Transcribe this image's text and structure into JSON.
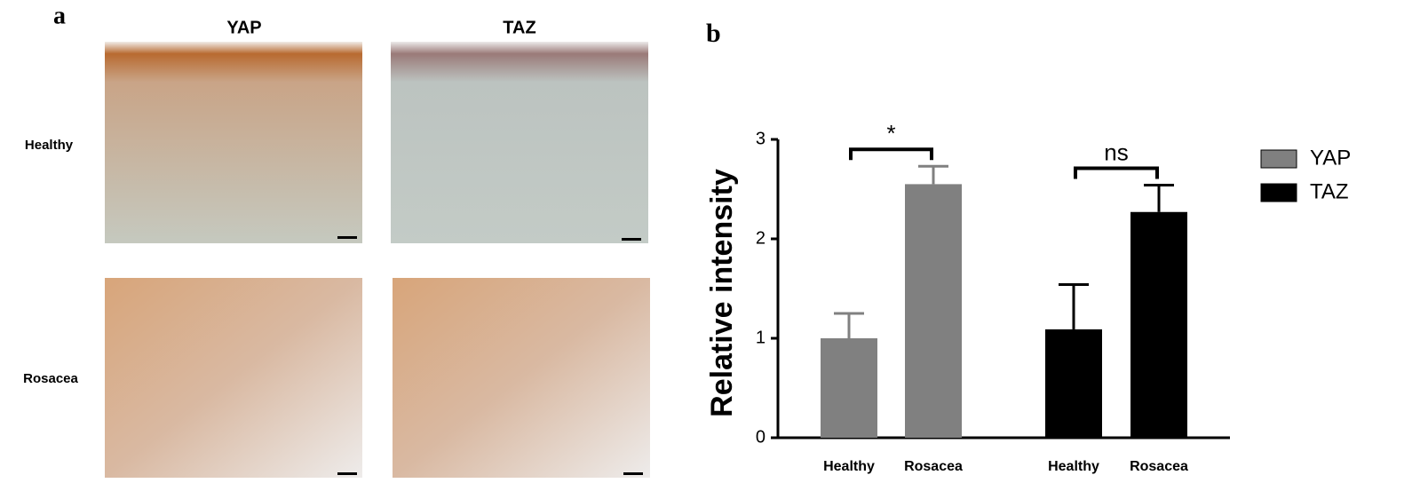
{
  "panel_a": {
    "label": "a",
    "columns": [
      "YAP",
      "TAZ"
    ],
    "rows": [
      "Healthy",
      "Rosacea"
    ]
  },
  "chart_data": {
    "type": "bar",
    "label": "b",
    "ylabel": "Relative intensity",
    "categories": [
      "Healthy",
      "Rosacea",
      "Healthy",
      "Rosacea"
    ],
    "series": [
      {
        "name": "YAP",
        "color": "#808080",
        "values": [
          1.0,
          2.55,
          null,
          null
        ],
        "errors": [
          0.25,
          0.18,
          null,
          null
        ]
      },
      {
        "name": "TAZ",
        "color": "#000000",
        "values": [
          null,
          null,
          1.09,
          2.27
        ],
        "errors": [
          null,
          null,
          0.45,
          0.27
        ]
      }
    ],
    "annotations": [
      "*",
      "ns"
    ],
    "ylim": [
      0,
      3
    ],
    "yticks": [
      0,
      1,
      2,
      3
    ],
    "legend": "right"
  }
}
